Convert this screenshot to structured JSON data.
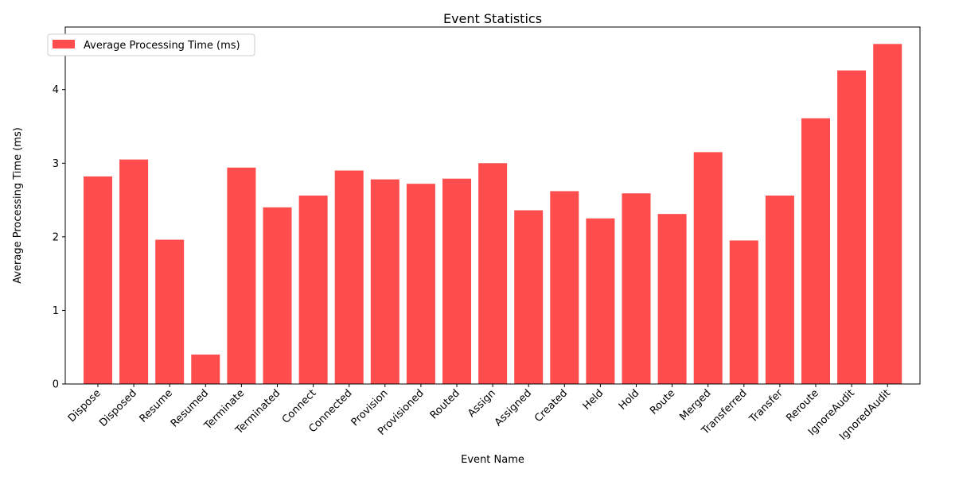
{
  "chart_data": {
    "type": "bar",
    "title": "Event Statistics",
    "xlabel": "Event Name",
    "ylabel": "Average Processing Time (ms)",
    "ylim": [
      0,
      4.85
    ],
    "yticks": [
      0,
      1,
      2,
      3,
      4
    ],
    "legend": {
      "position": "top-left",
      "label": "Average Processing Time (ms)"
    },
    "bar_color": "#ff4c4c",
    "grid": false,
    "categories": [
      "Dispose",
      "Disposed",
      "Resume",
      "Resumed",
      "Terminate",
      "Terminated",
      "Connect",
      "Connected",
      "Provision",
      "Provisioned",
      "Routed",
      "Assign",
      "Assigned",
      "Created",
      "Held",
      "Hold",
      "Route",
      "Merged",
      "Transferred",
      "Transfer",
      "Reroute",
      "IgnoreAudit",
      "IgnoredAudit"
    ],
    "series": [
      {
        "name": "Average Processing Time (ms)",
        "values": [
          2.82,
          3.05,
          1.96,
          0.4,
          2.94,
          2.4,
          2.56,
          2.9,
          2.78,
          2.72,
          2.79,
          3.0,
          2.36,
          2.62,
          2.25,
          2.59,
          2.31,
          3.15,
          1.95,
          2.56,
          3.61,
          4.26,
          4.62
        ]
      }
    ]
  }
}
